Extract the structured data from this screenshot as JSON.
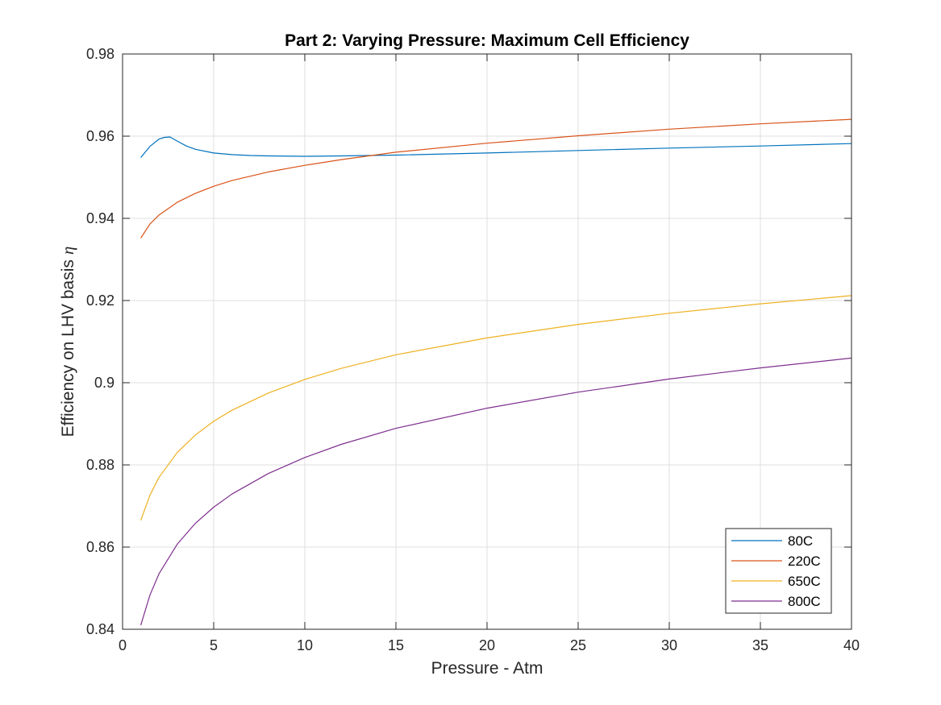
{
  "chart_data": {
    "type": "line",
    "title": "Part 2: Varying Pressure: Maximum Cell Efficiency",
    "xlabel": "Pressure - Atm",
    "ylabel_text": "Efficiency on LHV basis",
    "ylabel_symbol": "η",
    "xlim": [
      0,
      40
    ],
    "ylim": [
      0.84,
      0.98
    ],
    "x_ticks": [
      0,
      5,
      10,
      15,
      20,
      25,
      30,
      35,
      40
    ],
    "x_tick_labels": [
      "0",
      "5",
      "10",
      "15",
      "20",
      "25",
      "30",
      "35",
      "40"
    ],
    "y_ticks": [
      0.84,
      0.86,
      0.88,
      0.9,
      0.92,
      0.94,
      0.96,
      0.98
    ],
    "y_tick_labels": [
      "0.84",
      "0.86",
      "0.88",
      "0.9",
      "0.92",
      "0.94",
      "0.96",
      "0.98"
    ],
    "grid": true,
    "legend_position": "bottom-right",
    "series": [
      {
        "name": "80C",
        "color": "#0072BD",
        "x": [
          1,
          1.5,
          2,
          2.3,
          2.6,
          3,
          3.5,
          4,
          5,
          6,
          7,
          8,
          10,
          12,
          15,
          20,
          25,
          30,
          35,
          40
        ],
        "y": [
          0.9548,
          0.9575,
          0.9593,
          0.9597,
          0.9598,
          0.9588,
          0.9576,
          0.9568,
          0.9559,
          0.9555,
          0.9553,
          0.9552,
          0.9551,
          0.9552,
          0.9554,
          0.9559,
          0.9565,
          0.9571,
          0.9576,
          0.9582
        ]
      },
      {
        "name": "220C",
        "color": "#D95319",
        "x": [
          1,
          1.5,
          2,
          3,
          4,
          5,
          6,
          8,
          10,
          12,
          15,
          20,
          25,
          30,
          35,
          40
        ],
        "y": [
          0.9352,
          0.9386,
          0.9408,
          0.9439,
          0.9461,
          0.9478,
          0.9492,
          0.9513,
          0.9529,
          0.9543,
          0.9561,
          0.9583,
          0.9601,
          0.9617,
          0.963,
          0.9641
        ]
      },
      {
        "name": "650C",
        "color": "#EDB120",
        "x": [
          1,
          1.5,
          2,
          3,
          4,
          5,
          6,
          8,
          10,
          12,
          15,
          20,
          25,
          30,
          35,
          40
        ],
        "y": [
          0.8665,
          0.8726,
          0.877,
          0.883,
          0.8873,
          0.8906,
          0.8933,
          0.8975,
          0.9008,
          0.9035,
          0.9068,
          0.9109,
          0.9142,
          0.9169,
          0.9192,
          0.9212
        ]
      },
      {
        "name": "800C",
        "color": "#7E2F8E",
        "x": [
          1,
          1.5,
          2,
          3,
          4,
          5,
          6,
          8,
          10,
          12,
          15,
          20,
          25,
          30,
          35,
          40
        ],
        "y": [
          0.841,
          0.8483,
          0.8535,
          0.8607,
          0.8658,
          0.8697,
          0.8729,
          0.8779,
          0.8818,
          0.885,
          0.8889,
          0.8938,
          0.8977,
          0.9009,
          0.9036,
          0.906
        ]
      }
    ]
  }
}
